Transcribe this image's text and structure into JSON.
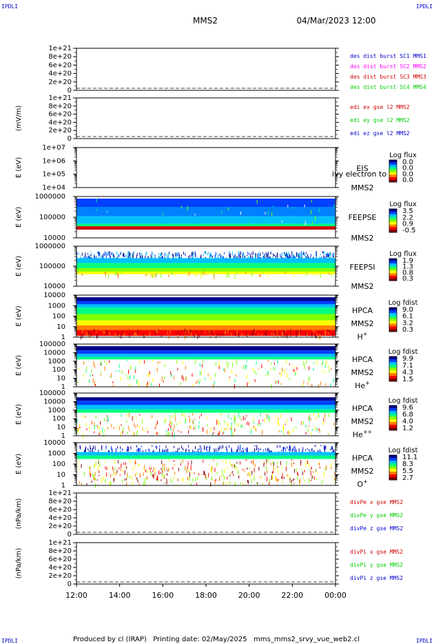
{
  "header": {
    "corner_label": "IPDLI",
    "spacecraft": "MMS2",
    "datetime": "04/Mar/2023 12:00"
  },
  "footer": {
    "text": "Produced by cl (IRAP)   Printing date: 02/May/2025   mms_mms2_srvy_vue_web2.cl"
  },
  "colors": {
    "blue": "#0000cc",
    "magenta": "#ff00ff",
    "red": "#cc0000",
    "green": "#00cc00",
    "colorbar": [
      "#800000",
      "#ff0000",
      "#ff8000",
      "#ffff00",
      "#80ff00",
      "#00ff80",
      "#00c0ff",
      "#0040ff",
      "#00008c"
    ]
  },
  "chart_data": [
    {
      "type": "line",
      "id": "p1",
      "ylabel": "",
      "ticks": [
        "1e+21",
        "8e+20",
        "6e+20",
        "4e+20",
        "2e+20",
        "0"
      ],
      "legend": [
        {
          "text": "des dist burst SC1 MMS1",
          "color": "#0000cc"
        },
        {
          "text": "des dist burst SC2 MMS2",
          "color": "#ff00ff"
        },
        {
          "text": "des dist burst SC3 MMS3",
          "color": "#cc0000"
        },
        {
          "text": "des dist burst SC4 MMS4",
          "color": "#00cc00"
        }
      ]
    },
    {
      "type": "line",
      "id": "p2",
      "ylabel": "(mV/m)",
      "ticks": [
        "1e+21",
        "8e+20",
        "6e+20",
        "4e+20",
        "2e+20",
        "0"
      ],
      "legend": [
        {
          "text": "edi ex gse l2 MMS2",
          "color": "#cc0000"
        },
        {
          "text": "edi ey gse l2 MMS2",
          "color": "#00cc00"
        },
        {
          "text": "edi ez gse l2 MMS2",
          "color": "#0000cc"
        }
      ]
    },
    {
      "type": "heatmap",
      "id": "p3",
      "ylabel": "E (eV)",
      "ticks": [
        "1e+07",
        "1e+06",
        "1e+05",
        "1e+04"
      ],
      "labels": [
        "EIS",
        "MMS2"
      ],
      "overlay": "ivy electron to",
      "colorbar": {
        "title": "Log flux",
        "values": [
          "0.0",
          "0.0",
          "0.0",
          "0.0"
        ]
      }
    },
    {
      "type": "heatmap",
      "id": "p4",
      "ylabel": "E (eV)",
      "ticks": [
        "1000000",
        "100000",
        "10000"
      ],
      "labels": [
        "FEEPSE",
        "MMS2"
      ],
      "colorbar": {
        "title": "Log flux",
        "values": [
          "3.5",
          "2.2",
          "0.9",
          "-0.5"
        ]
      }
    },
    {
      "type": "heatmap",
      "id": "p5",
      "ylabel": "E (eV)",
      "ticks": [
        "1000000",
        "100000",
        "10000"
      ],
      "labels": [
        "FEEPSI",
        "MMS2"
      ],
      "colorbar": {
        "title": "Log flux",
        "values": [
          "1.9",
          "1.3",
          "0.8",
          "0.3"
        ]
      }
    },
    {
      "type": "heatmap",
      "id": "p6",
      "ylabel": "E (eV)",
      "ticks": [
        "10000",
        "1000",
        "100",
        "10",
        "1"
      ],
      "labels": [
        "HPCA",
        "MMS2"
      ],
      "species": {
        "base": "H",
        "sup": "+"
      },
      "colorbar": {
        "title": "Log fdist",
        "values": [
          "9.0",
          "6.1",
          "3.2",
          "0.3"
        ]
      }
    },
    {
      "type": "heatmap",
      "id": "p7",
      "ylabel": "E (eV)",
      "ticks": [
        "100000",
        "10000",
        "1000",
        "100",
        "10",
        "1"
      ],
      "labels": [
        "HPCA",
        "MMS2"
      ],
      "species": {
        "base": "He",
        "sup": "+"
      },
      "colorbar": {
        "title": "Log fdist",
        "values": [
          "9.9",
          "7.1",
          "4.3",
          "1.5"
        ]
      }
    },
    {
      "type": "heatmap",
      "id": "p8",
      "ylabel": "E (eV)",
      "ticks": [
        "100000",
        "10000",
        "1000",
        "100",
        "10",
        "1"
      ],
      "labels": [
        "HPCA",
        "MMS2"
      ],
      "species": {
        "base": "He",
        "sup": "++"
      },
      "colorbar": {
        "title": "Log fdist",
        "values": [
          "9.6",
          "6.8",
          "4.0",
          "1.2"
        ]
      }
    },
    {
      "type": "heatmap",
      "id": "p9",
      "ylabel": "E (eV)",
      "ticks": [
        "10000",
        "1000",
        "100",
        "10",
        "1"
      ],
      "labels": [
        "HPCA",
        "MMS2"
      ],
      "species": {
        "base": "O",
        "sup": "+"
      },
      "colorbar": {
        "title": "Log fdist",
        "values": [
          "11.1",
          "8.3",
          "5.5",
          "2.7"
        ]
      }
    },
    {
      "type": "line",
      "id": "p10",
      "ylabel": "(nPa/km)",
      "ticks": [
        "1e+21",
        "8e+20",
        "6e+20",
        "4e+20",
        "2e+20",
        "0"
      ],
      "legend": [
        {
          "text": "divPe x gse MMS2",
          "color": "#cc0000"
        },
        {
          "text": "divPe y gse MMS2",
          "color": "#00cc00"
        },
        {
          "text": "divPe z gse MMS2",
          "color": "#0000cc"
        }
      ]
    },
    {
      "type": "line",
      "id": "p11",
      "ylabel": "(nPa/km)",
      "ticks": [
        "1e+21",
        "8e+20",
        "6e+20",
        "4e+20",
        "2e+20",
        "0"
      ],
      "legend": [
        {
          "text": "divPi x gse MMS2",
          "color": "#cc0000"
        },
        {
          "text": "divPi y gse MMS2",
          "color": "#00cc00"
        },
        {
          "text": "divPi z gse MMS2",
          "color": "#0000cc"
        }
      ]
    }
  ],
  "x_axis": {
    "ticks": [
      "12:00",
      "14:00",
      "16:00",
      "18:00",
      "20:00",
      "22:00",
      "00:00"
    ]
  }
}
